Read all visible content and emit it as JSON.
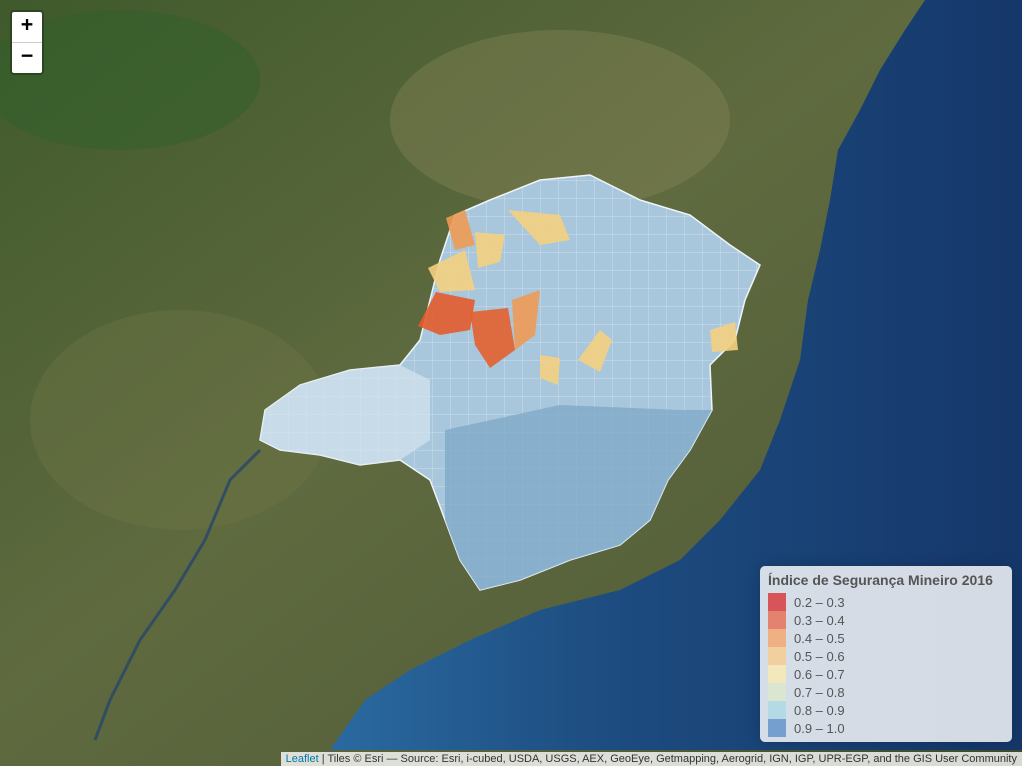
{
  "zoom": {
    "in_label": "+",
    "out_label": "−"
  },
  "legend": {
    "title": "Índice de Segurança Mineiro 2016",
    "items": [
      {
        "label": "0.2 – 0.3",
        "color": "#d7191c"
      },
      {
        "label": "0.3 – 0.4",
        "color": "#e85b3a"
      },
      {
        "label": "0.4 – 0.5",
        "color": "#f99d59"
      },
      {
        "label": "0.5 – 0.6",
        "color": "#fec980"
      },
      {
        "label": "0.6 – 0.7",
        "color": "#ffedaa"
      },
      {
        "label": "0.7 – 0.8",
        "color": "#dbe9c6"
      },
      {
        "label": "0.8 – 0.9",
        "color": "#a5d8e4"
      },
      {
        "label": "0.9 – 1.0",
        "color": "#4a84c4"
      }
    ]
  },
  "attribution": {
    "link": "Leaflet",
    "text": " | Tiles © Esri — Source: Esri, i-cubed, USDA, USGS, AEX, GeoEye, Getmapping, Aerogrid, IGN, IGP, UPR-EGP, and the GIS User Community"
  },
  "colors": {
    "ocean": "#1e4f86",
    "land": "#45562f",
    "region_fill": "#a9c7dc",
    "border": "#eef4f9"
  }
}
